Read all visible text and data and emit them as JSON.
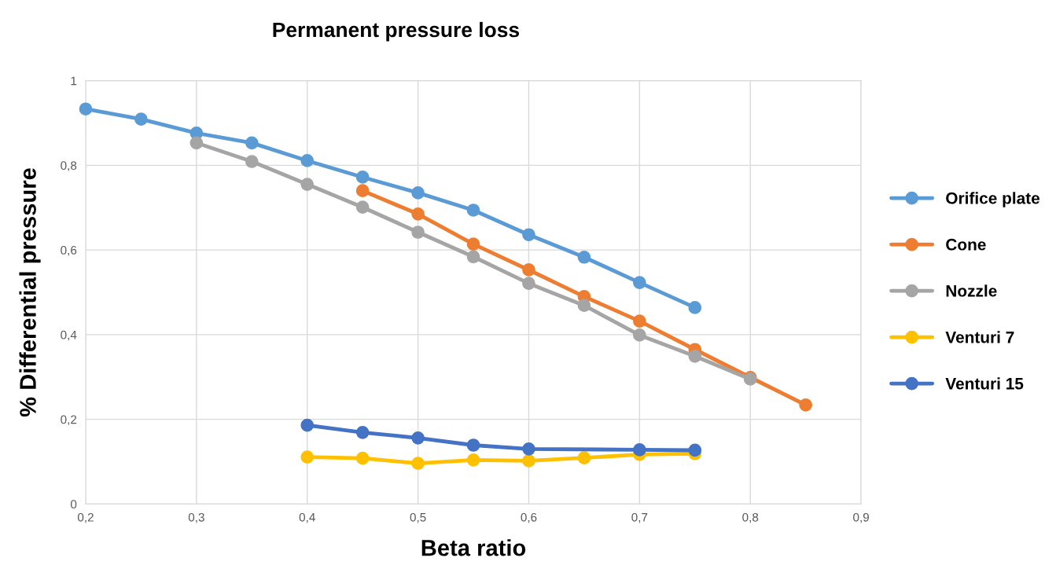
{
  "chart_data": {
    "type": "line",
    "title": "Permanent pressure loss",
    "xlabel": "Beta ratio",
    "ylabel": "% Differential pressure",
    "xlim": [
      0.2,
      0.9
    ],
    "xticks": [
      {
        "value": 0.2,
        "label": "0,2"
      },
      {
        "value": 0.3,
        "label": "0,3"
      },
      {
        "value": 0.4,
        "label": "0,4"
      },
      {
        "value": 0.5,
        "label": "0,5"
      },
      {
        "value": 0.6,
        "label": "0,6"
      },
      {
        "value": 0.7,
        "label": "0,7"
      },
      {
        "value": 0.8,
        "label": "0,8"
      },
      {
        "value": 0.9,
        "label": "0,9"
      }
    ],
    "ylim": [
      0,
      1
    ],
    "yticks": [
      0,
      {
        "value": 0.2,
        "label": "0,2"
      },
      {
        "value": 0.4,
        "label": "0,4"
      },
      {
        "value": 0.6,
        "label": "0,6"
      },
      {
        "value": 0.8,
        "label": "0,8"
      },
      1
    ],
    "grid": true,
    "legend": "right",
    "marker": "circle",
    "line_style": "solid",
    "series": [
      {
        "name": "Orifice plate",
        "color": "#5b9bd5",
        "x": [
          0.2,
          0.25,
          0.3,
          0.35,
          0.4,
          0.45,
          0.5,
          0.55,
          0.6,
          0.65,
          0.7,
          0.75
        ],
        "values": [
          0.933,
          0.909,
          0.876,
          0.853,
          0.811,
          0.772,
          0.735,
          0.694,
          0.636,
          0.583,
          0.523,
          0.464
        ]
      },
      {
        "name": "Cone",
        "color": "#ed7d31",
        "x": [
          0.45,
          0.5,
          0.55,
          0.6,
          0.65,
          0.7,
          0.75,
          0.8,
          0.85
        ],
        "values": [
          0.74,
          0.685,
          0.614,
          0.553,
          0.49,
          0.432,
          0.365,
          0.299,
          0.234
        ]
      },
      {
        "name": "Nozzle",
        "color": "#a5a5a5",
        "x": [
          0.3,
          0.35,
          0.4,
          0.45,
          0.5,
          0.55,
          0.6,
          0.65,
          0.7,
          0.75,
          0.8
        ],
        "values": [
          0.853,
          0.809,
          0.755,
          0.701,
          0.642,
          0.584,
          0.521,
          0.469,
          0.399,
          0.349,
          0.295
        ]
      },
      {
        "name": "Venturi 7",
        "color": "#ffc000",
        "x": [
          0.4,
          0.45,
          0.5,
          0.55,
          0.6,
          0.65,
          0.7,
          0.75
        ],
        "values": [
          0.111,
          0.108,
          0.096,
          0.104,
          0.102,
          0.109,
          0.117,
          0.119
        ]
      },
      {
        "name": "Venturi 15",
        "color": "#4472c4",
        "x": [
          0.4,
          0.45,
          0.5,
          0.55,
          0.6,
          0.7,
          0.75
        ],
        "values": [
          0.186,
          0.169,
          0.156,
          0.139,
          0.13,
          0.128,
          0.127
        ]
      }
    ]
  }
}
